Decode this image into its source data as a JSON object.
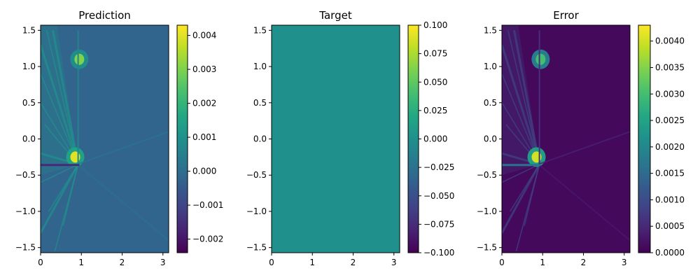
{
  "chart_data": [
    {
      "type": "heatmap",
      "title": "Prediction",
      "xlabel": "",
      "ylabel": "",
      "xlim": [
        0,
        3.1416
      ],
      "ylim": [
        -1.5708,
        1.5708
      ],
      "x_ticks": [
        "0",
        "1",
        "2",
        "3"
      ],
      "x_tick_values": [
        0,
        1,
        2,
        3
      ],
      "y_ticks": [
        "1.5",
        "1.0",
        "0.5",
        "0.0",
        "−0.5",
        "−1.0",
        "−1.5"
      ],
      "y_tick_values": [
        1.5,
        1.0,
        0.5,
        0.0,
        -0.5,
        -1.0,
        -1.5
      ],
      "colormap": "viridis",
      "colorbar": {
        "min": -0.0024,
        "max": 0.0043,
        "ticks": [
          "0.004",
          "0.003",
          "0.002",
          "0.001",
          "0.000",
          "−0.001",
          "−0.002"
        ],
        "tick_values": [
          0.004,
          0.003,
          0.002,
          0.001,
          0.0,
          -0.001,
          -0.002
        ]
      },
      "background_value": -0.0002,
      "features": [
        {
          "kind": "fan",
          "desc": "streaks from left edge region toward x=0.9 line",
          "value": 0.001
        },
        {
          "kind": "hotspot",
          "x": 0.85,
          "y": -0.25,
          "value": 0.004
        },
        {
          "kind": "hotspot",
          "x": 0.95,
          "y": 1.1,
          "value": 0.003
        },
        {
          "kind": "vertical_line",
          "x": 0.92,
          "y_from": -0.35,
          "y_to": 1.5,
          "value": 0.0006
        },
        {
          "kind": "diagonal",
          "from": [
            0.9,
            -0.35
          ],
          "to": [
            3.14,
            0.1
          ],
          "value": 0.0002
        },
        {
          "kind": "diagonal",
          "from": [
            0.9,
            -0.35
          ],
          "to": [
            3.14,
            -1.4
          ],
          "value": 0.0001
        },
        {
          "kind": "band",
          "y": -0.36,
          "x_from": 0,
          "x_to": 0.95,
          "value": -0.0016
        }
      ]
    },
    {
      "type": "heatmap",
      "title": "Target",
      "xlabel": "",
      "ylabel": "",
      "xlim": [
        0,
        3.1416
      ],
      "ylim": [
        -1.5708,
        1.5708
      ],
      "x_ticks": [
        "0",
        "1",
        "2",
        "3"
      ],
      "x_tick_values": [
        0,
        1,
        2,
        3
      ],
      "y_ticks": [
        "1.5",
        "1.0",
        "0.5",
        "0.0",
        "−0.5",
        "−1.0",
        "−1.5"
      ],
      "y_tick_values": [
        1.5,
        1.0,
        0.5,
        0.0,
        -0.5,
        -1.0,
        -1.5
      ],
      "colormap": "viridis",
      "colorbar": {
        "min": -0.1,
        "max": 0.1,
        "ticks": [
          "0.100",
          "0.075",
          "0.050",
          "0.025",
          "0.000",
          "−0.025",
          "−0.050",
          "−0.075",
          "−0.100"
        ],
        "tick_values": [
          0.1,
          0.075,
          0.05,
          0.025,
          0.0,
          -0.025,
          -0.05,
          -0.075,
          -0.1
        ]
      },
      "background_value": 0.0,
      "features": []
    },
    {
      "type": "heatmap",
      "title": "Error",
      "xlabel": "",
      "ylabel": "",
      "xlim": [
        0,
        3.1416
      ],
      "ylim": [
        -1.5708,
        1.5708
      ],
      "x_ticks": [
        "0",
        "1",
        "2",
        "3"
      ],
      "x_tick_values": [
        0,
        1,
        2,
        3
      ],
      "y_ticks": [
        "1.5",
        "1.0",
        "0.5",
        "0.0",
        "−0.5",
        "−1.0",
        "−1.5"
      ],
      "y_tick_values": [
        1.5,
        1.0,
        0.5,
        0.0,
        -0.5,
        -1.0,
        -1.5
      ],
      "colormap": "viridis",
      "colorbar": {
        "min": 0.0,
        "max": 0.0043,
        "ticks": [
          "0.0040",
          "0.0035",
          "0.0030",
          "0.0025",
          "0.0020",
          "0.0015",
          "0.0010",
          "0.0005",
          "0.0000"
        ],
        "tick_values": [
          0.004,
          0.0035,
          0.003,
          0.0025,
          0.002,
          0.0015,
          0.001,
          0.0005,
          0.0
        ]
      },
      "background_value": 0.0001,
      "features": [
        {
          "kind": "fan",
          "desc": "abs error streaks from left edge toward x=0.9 line",
          "value": 0.0009
        },
        {
          "kind": "hotspot",
          "x": 0.85,
          "y": -0.25,
          "value": 0.004
        },
        {
          "kind": "hotspot",
          "x": 0.95,
          "y": 1.1,
          "value": 0.003
        },
        {
          "kind": "vertical_line",
          "x": 0.92,
          "y_from": -0.35,
          "y_to": 1.5,
          "value": 0.0006
        },
        {
          "kind": "diagonal",
          "from": [
            0.9,
            -0.35
          ],
          "to": [
            3.14,
            0.1
          ],
          "value": 0.0004
        },
        {
          "kind": "diagonal",
          "from": [
            0.9,
            -0.35
          ],
          "to": [
            3.14,
            -1.4
          ],
          "value": 0.0003
        },
        {
          "kind": "band",
          "y": -0.36,
          "x_from": 0,
          "x_to": 0.95,
          "value": 0.0016
        }
      ]
    }
  ]
}
